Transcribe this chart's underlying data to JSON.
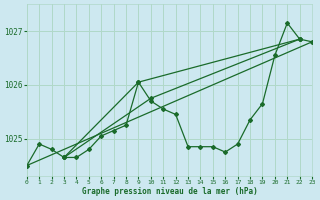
{
  "title": "Graphe pression niveau de la mer (hPa)",
  "bg_color": "#cde8f0",
  "grid_color": "#b0d8c8",
  "line_color": "#1a6b2a",
  "x_min": 0,
  "x_max": 23,
  "y_min": 1024.3,
  "y_max": 1027.5,
  "yticks": [
    1025,
    1026,
    1027
  ],
  "xticks": [
    0,
    1,
    2,
    3,
    4,
    5,
    6,
    7,
    8,
    9,
    10,
    11,
    12,
    13,
    14,
    15,
    16,
    17,
    18,
    19,
    20,
    21,
    22,
    23
  ],
  "main_series": [
    [
      0,
      1024.5
    ],
    [
      1,
      1024.9
    ],
    [
      2,
      1024.8
    ],
    [
      3,
      1024.65
    ],
    [
      4,
      1024.65
    ],
    [
      5,
      1024.8
    ],
    [
      6,
      1025.05
    ],
    [
      7,
      1025.15
    ],
    [
      8,
      1025.25
    ],
    [
      9,
      1026.05
    ],
    [
      10,
      1025.7
    ],
    [
      11,
      1025.55
    ],
    [
      12,
      1025.45
    ],
    [
      13,
      1024.85
    ],
    [
      14,
      1024.85
    ],
    [
      15,
      1024.85
    ],
    [
      16,
      1024.75
    ],
    [
      17,
      1024.9
    ],
    [
      18,
      1025.35
    ],
    [
      19,
      1025.65
    ],
    [
      20,
      1026.55
    ],
    [
      21,
      1027.15
    ],
    [
      22,
      1026.85
    ],
    [
      23,
      1026.8
    ]
  ],
  "line2": [
    [
      0,
      1024.5
    ],
    [
      23,
      1026.8
    ]
  ],
  "line3": [
    [
      3,
      1024.65
    ],
    [
      9,
      1026.05
    ],
    [
      22,
      1026.85
    ]
  ],
  "line4": [
    [
      3,
      1024.65
    ],
    [
      10,
      1025.75
    ],
    [
      22,
      1026.85
    ]
  ]
}
